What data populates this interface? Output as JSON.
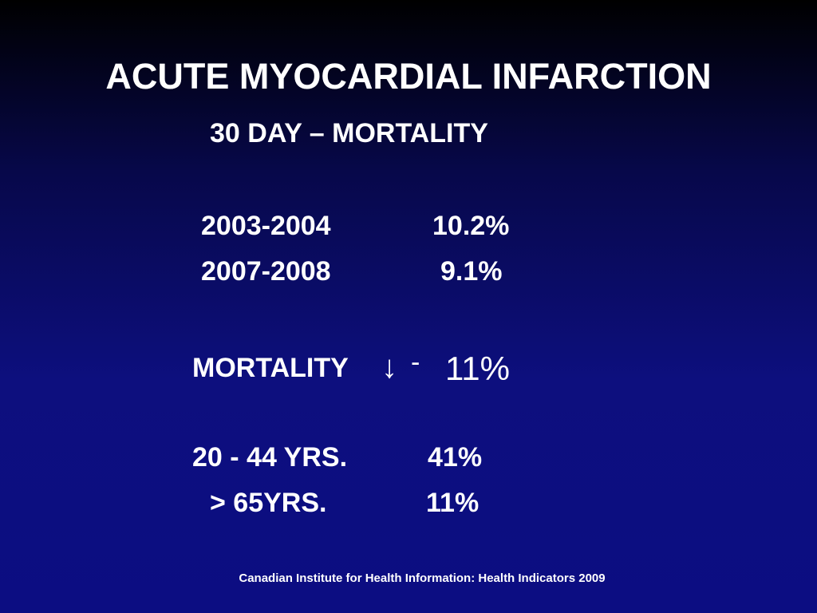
{
  "slide": {
    "title": "ACUTE MYOCARDIAL INFARCTION",
    "subtitle": "30 DAY – MORTALITY",
    "mortality_by_period": [
      {
        "period": "2003-2004",
        "value": "10.2%"
      },
      {
        "period": "2007-2008",
        "value": "9.1%"
      }
    ],
    "mortality_change": {
      "label": "MORTALITY",
      "arrow": "↓",
      "dash": "-",
      "value": "11%"
    },
    "age_groups": [
      {
        "age": "20 - 44 YRS.",
        "value": "41%"
      },
      {
        "age": "> 65YRS.",
        "value": "11%"
      }
    ],
    "source": "Canadian Institute for Health Information: Health Indicators 2009"
  },
  "colors": {
    "background_top": "#000000",
    "background_bottom": "#0c0d82",
    "text": "#ffffff"
  }
}
